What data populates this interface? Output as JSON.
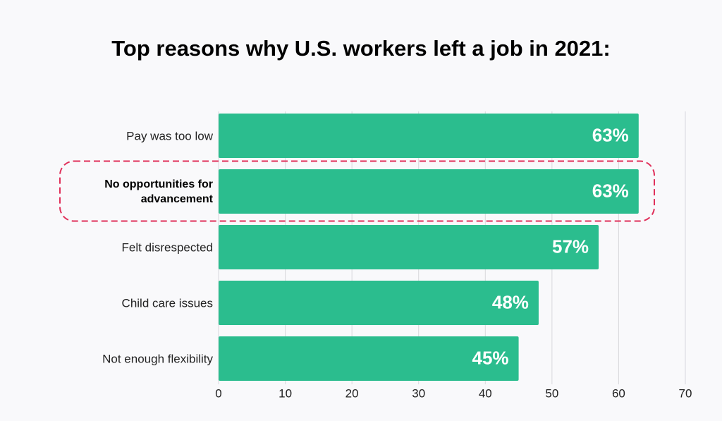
{
  "chart_data": {
    "type": "bar",
    "orientation": "horizontal",
    "title": "Top reasons why U.S. workers left a job in 2021:",
    "categories": [
      "Pay was too low",
      "No opportunities for advancement",
      "Felt disrespected",
      "Child care issues",
      "Not enough flexibility"
    ],
    "values": [
      63,
      63,
      57,
      48,
      45
    ],
    "value_labels": [
      "63%",
      "63%",
      "57%",
      "48%",
      "45%"
    ],
    "color": "#2bbd8e",
    "highlight_index": 1,
    "highlight_color": "#e0305a",
    "xlim": [
      0,
      70
    ],
    "xticks": [
      0,
      10,
      20,
      30,
      40,
      50,
      60,
      70
    ],
    "grid": true
  }
}
